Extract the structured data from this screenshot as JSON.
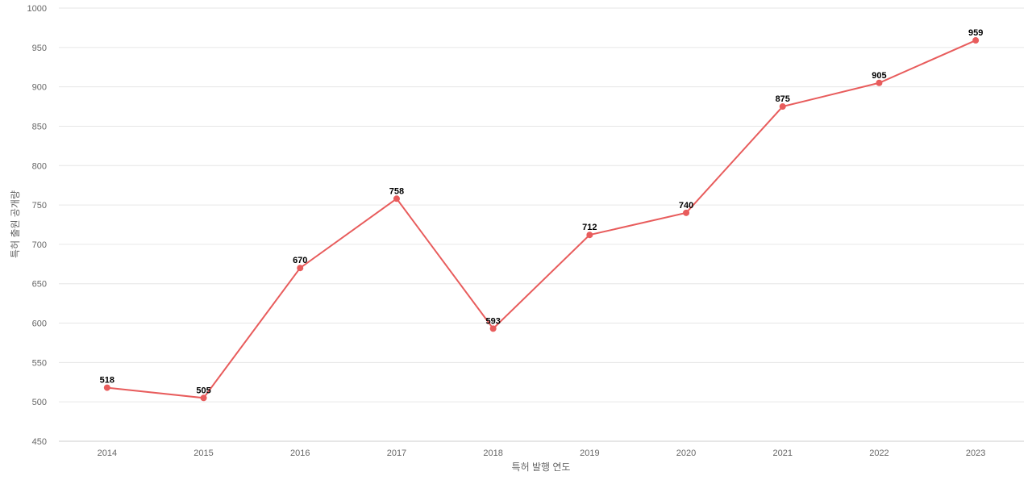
{
  "chart_data": {
    "type": "line",
    "title": "",
    "xlabel": "특허 발행 연도",
    "ylabel": "특허 출원 공개량",
    "categories": [
      "2014",
      "2015",
      "2016",
      "2017",
      "2018",
      "2019",
      "2020",
      "2021",
      "2022",
      "2023"
    ],
    "series": [
      {
        "name": "",
        "values": [
          518,
          505,
          670,
          758,
          593,
          712,
          740,
          875,
          905,
          959
        ],
        "color": "#e85c5c"
      }
    ],
    "ylim": [
      450,
      1000
    ],
    "yticks": [
      450,
      500,
      550,
      600,
      650,
      700,
      750,
      800,
      850,
      900,
      950,
      1000
    ],
    "grid": true,
    "data_labels": true,
    "legend": "none"
  }
}
